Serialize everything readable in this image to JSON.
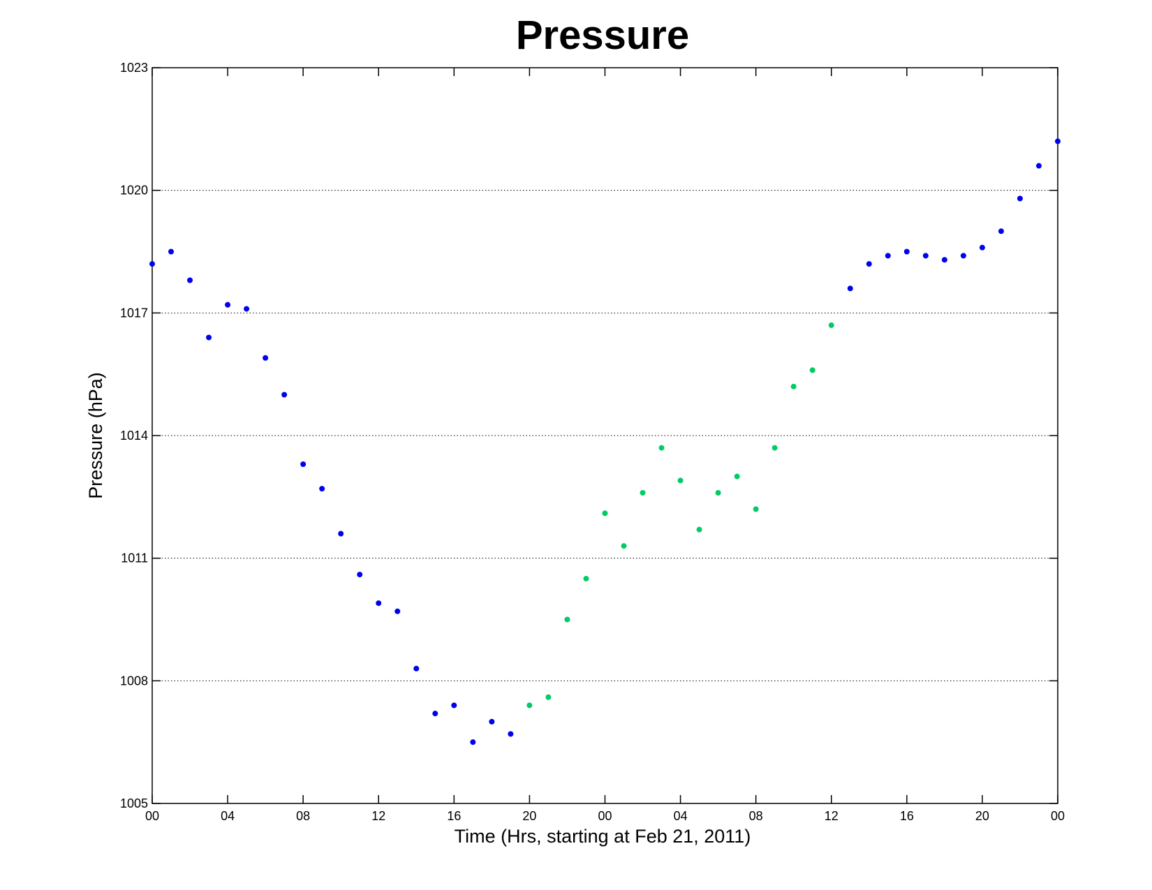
{
  "chart_data": {
    "type": "scatter",
    "title": "Pressure",
    "xlabel": "Time (Hrs, starting at Feb 21, 2011)",
    "ylabel": "Pressure (hPa)",
    "xlim": [
      0,
      48
    ],
    "ylim": [
      1005,
      1023
    ],
    "x_ticks": [
      0,
      4,
      8,
      12,
      16,
      20,
      24,
      28,
      32,
      36,
      40,
      44,
      48
    ],
    "x_tick_labels": [
      "00",
      "04",
      "08",
      "12",
      "16",
      "20",
      "00",
      "04",
      "08",
      "12",
      "16",
      "20",
      "00"
    ],
    "y_ticks": [
      1005,
      1008,
      1011,
      1014,
      1017,
      1020,
      1023
    ],
    "y_tick_labels": [
      "1005",
      "1008",
      "1011",
      "1014",
      "1017",
      "1020",
      "1023"
    ],
    "grid": "horizontal dotted",
    "colors": {
      "blue_series": "#0000ee",
      "green_series": "#00cc66"
    },
    "series": [
      {
        "color": "#0000ee",
        "x": [
          0,
          1,
          2,
          3,
          4,
          5,
          6,
          7,
          8,
          9,
          10,
          11,
          12,
          13,
          14,
          15,
          16,
          17,
          18,
          19
        ],
        "y": [
          1018.2,
          1018.5,
          1017.8,
          1016.4,
          1017.2,
          1017.1,
          1015.9,
          1015.0,
          1013.3,
          1012.7,
          1011.6,
          1010.6,
          1009.9,
          1009.7,
          1008.3,
          1007.2,
          1007.4,
          1006.5,
          1007.0,
          1006.7
        ]
      },
      {
        "color": "#00cc66",
        "x": [
          20,
          21,
          22,
          23,
          24,
          25,
          26,
          27,
          28,
          29,
          30,
          31,
          32,
          33,
          34,
          35,
          36
        ],
        "y": [
          1007.4,
          1007.6,
          1009.5,
          1010.5,
          1012.1,
          1011.3,
          1012.6,
          1013.7,
          1012.9,
          1011.7,
          1012.6,
          1013.0,
          1012.2,
          1013.7,
          1015.2,
          1015.6,
          1016.7
        ]
      },
      {
        "color": "#0000ee",
        "x": [
          37,
          38,
          39,
          40,
          41,
          42,
          43,
          44,
          45,
          46,
          47,
          48
        ],
        "y": [
          1017.6,
          1018.2,
          1018.4,
          1018.5,
          1018.4,
          1018.3,
          1018.4,
          1018.6,
          1019.0,
          1019.8,
          1020.6,
          1021.2
        ]
      }
    ]
  }
}
